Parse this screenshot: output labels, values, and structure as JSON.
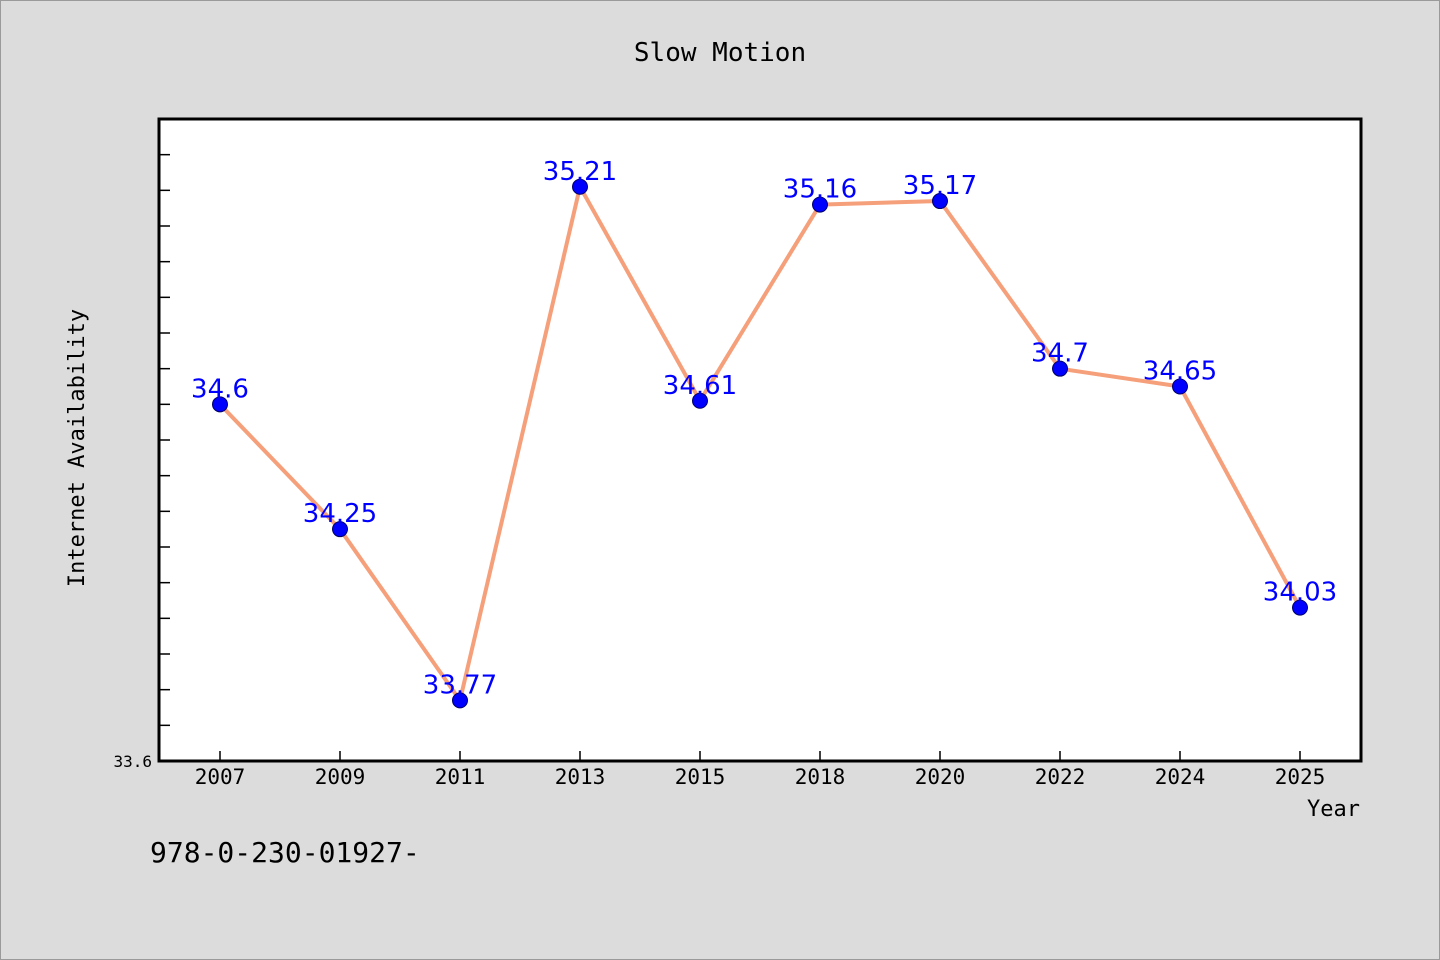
{
  "chart_data": {
    "type": "line",
    "title": "Slow Motion",
    "xlabel": "Year",
    "ylabel": "Internet Availability",
    "categories": [
      "2007",
      "2009",
      "2011",
      "2013",
      "2015",
      "2018",
      "2020",
      "2022",
      "2024",
      "2025"
    ],
    "series": [
      {
        "values": [
          34.6,
          34.25,
          33.77,
          35.21,
          34.61,
          35.16,
          35.17,
          34.7,
          34.65,
          34.03
        ],
        "labels": [
          "34.6",
          "34.25",
          "33.77",
          "35.21",
          "34.61",
          "35.16",
          "35.17",
          "34.7",
          "34.65",
          "34.03"
        ]
      }
    ],
    "ylim": [
      33.6,
      35.4
    ],
    "y_tick_labels": [
      {
        "value": 33.6,
        "label": "33.6"
      }
    ],
    "grid": false,
    "colors": {
      "line": "#f5a07a",
      "marker": "#0000ff",
      "label": "#0000ff",
      "background": "#dcdcdc",
      "plot": "#ffffff"
    }
  },
  "footer_text": "978-0-230-01927-"
}
